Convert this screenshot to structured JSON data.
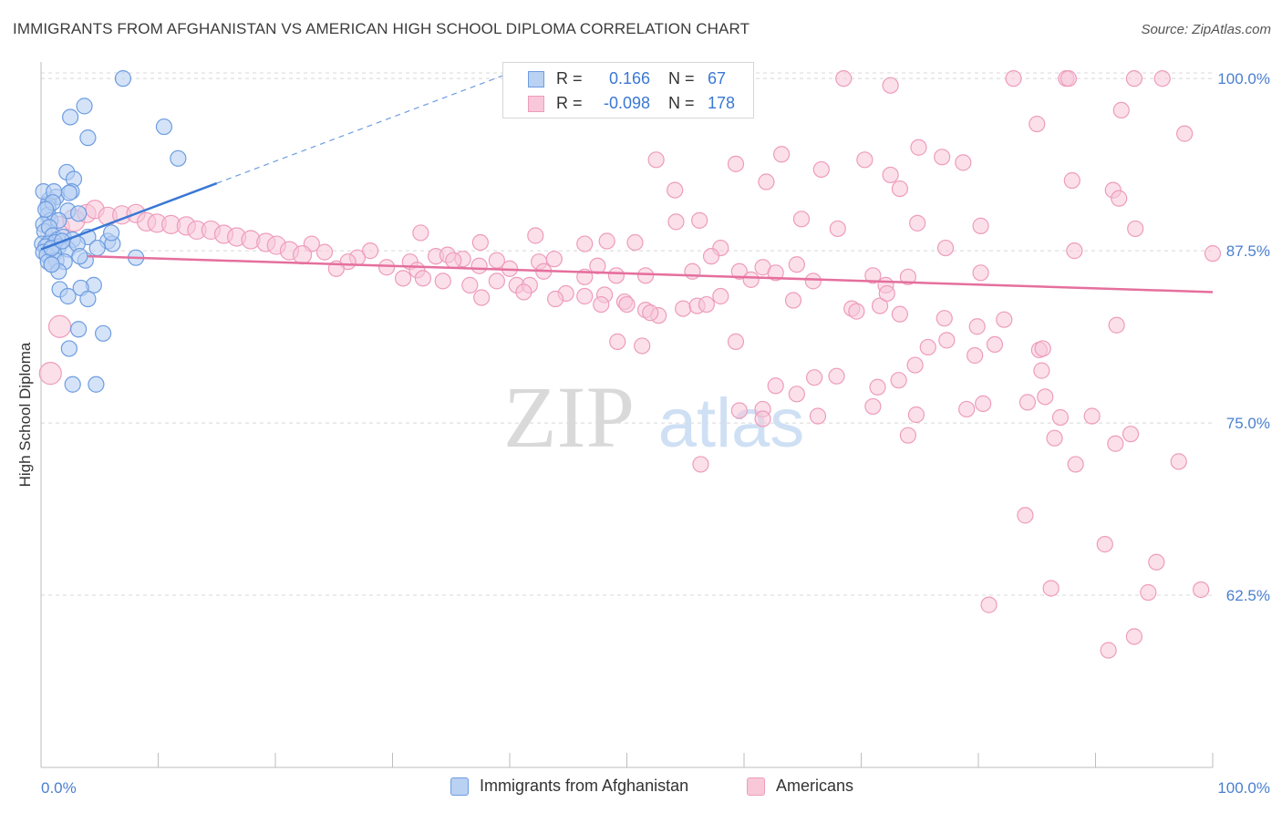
{
  "header": {
    "title": "IMMIGRANTS FROM AFGHANISTAN VS AMERICAN HIGH SCHOOL DIPLOMA CORRELATION CHART",
    "source": "Source: ZipAtlas.com"
  },
  "watermark": {
    "zip": "ZIP",
    "atlas": "atlas"
  },
  "colors": {
    "blue": "#3a78d4",
    "blue_fill": "#b9d1f3",
    "blue_stroke": "#6d9de0",
    "pink": "#e56f9d",
    "pink_fill": "#f8c7d8",
    "pink_stroke": "#ee9cbb",
    "axis_label": "#4a7fd0",
    "grid": "#d8d8d8"
  },
  "legend_stats": {
    "r_label": "R =",
    "n_label": "N =",
    "blue": {
      "r": "0.166",
      "n": "67"
    },
    "pink": {
      "r": "-0.098",
      "n": "178"
    }
  },
  "chart_data": {
    "type": "scatter",
    "title": "IMMIGRANTS FROM AFGHANISTAN VS AMERICAN HIGH SCHOOL DIPLOMA CORRELATION CHART",
    "xlabel": "",
    "ylabel": "High School Diploma",
    "xlim": [
      0,
      100
    ],
    "ylim": [
      50,
      101.2
    ],
    "x_tick_labels": [
      "0.0%",
      "100.0%"
    ],
    "y_ticks": [
      {
        "value": 100,
        "label": "100.0%"
      },
      {
        "value": 87.5,
        "label": "87.5%"
      },
      {
        "value": 75,
        "label": "75.0%"
      },
      {
        "value": 62.5,
        "label": "62.5%"
      }
    ],
    "legend": [
      "Immigrants from Afghanistan",
      "Americans"
    ],
    "series": [
      {
        "name": "Immigrants from Afghanistan",
        "color": "blue",
        "R": 0.166,
        "N": 67,
        "trend": {
          "x": [
            0,
            15
          ],
          "y": [
            87.6,
            92.4
          ]
        },
        "trend_dashed": {
          "x": [
            15,
            40
          ],
          "y": [
            92.4,
            100.4
          ]
        },
        "points": [
          [
            7,
            100
          ],
          [
            10.5,
            96.5
          ],
          [
            3.7,
            98
          ],
          [
            2.5,
            97.2
          ],
          [
            4,
            95.7
          ],
          [
            11.7,
            94.2
          ],
          [
            2.2,
            93.2
          ],
          [
            2.8,
            92.7
          ],
          [
            2.6,
            91.8
          ],
          [
            0.7,
            91.2
          ],
          [
            1.3,
            91.4
          ],
          [
            2.4,
            91.7
          ],
          [
            0.6,
            90.9
          ],
          [
            2.3,
            90.4
          ],
          [
            0.6,
            90.6
          ],
          [
            0.2,
            91.8
          ],
          [
            1.1,
            91.8
          ],
          [
            3.2,
            90.2
          ],
          [
            0.6,
            90.1
          ],
          [
            0.8,
            89.7
          ],
          [
            0.2,
            89.4
          ],
          [
            1.5,
            89.7
          ],
          [
            0.3,
            88.9
          ],
          [
            0.7,
            89.2
          ],
          [
            1.0,
            88.6
          ],
          [
            1.4,
            88.3
          ],
          [
            1.9,
            88.5
          ],
          [
            2.7,
            88.3
          ],
          [
            4,
            88.5
          ],
          [
            5.7,
            88.2
          ],
          [
            0.1,
            88.0
          ],
          [
            0.6,
            88.0
          ],
          [
            1.2,
            88.1
          ],
          [
            0.4,
            87.8
          ],
          [
            0.8,
            87.6
          ],
          [
            1.5,
            87.8
          ],
          [
            2.3,
            87.6
          ],
          [
            3.1,
            88.0
          ],
          [
            4.8,
            87.7
          ],
          [
            6.1,
            88.0
          ],
          [
            0.2,
            87.4
          ],
          [
            0.5,
            87.2
          ],
          [
            1.1,
            87.3
          ],
          [
            0.6,
            86.7
          ],
          [
            1.3,
            86.8
          ],
          [
            2.0,
            86.7
          ],
          [
            3.8,
            86.8
          ],
          [
            8.1,
            87.0
          ],
          [
            0.9,
            86.5
          ],
          [
            1.5,
            86.0
          ],
          [
            4.5,
            85.0
          ],
          [
            3.4,
            84.8
          ],
          [
            1.6,
            84.7
          ],
          [
            2.3,
            84.2
          ],
          [
            4.0,
            84.0
          ],
          [
            3.2,
            81.8
          ],
          [
            5.3,
            81.5
          ],
          [
            2.4,
            80.4
          ],
          [
            2.7,
            77.8
          ],
          [
            4.7,
            77.8
          ],
          [
            1.0,
            91.0
          ],
          [
            0.4,
            90.5
          ],
          [
            0.9,
            87.7
          ],
          [
            1.8,
            88.2
          ],
          [
            3.3,
            87.1
          ],
          [
            0.9,
            86.5
          ],
          [
            6.0,
            88.8
          ]
        ]
      },
      {
        "name": "Americans",
        "color": "pink",
        "R": -0.098,
        "N": 178,
        "trend": {
          "x": [
            4,
            100
          ],
          "y": [
            87.1,
            84.5
          ]
        },
        "points": [
          [
            68.5,
            100
          ],
          [
            72.5,
            99.5
          ],
          [
            83,
            100
          ],
          [
            87.5,
            100
          ],
          [
            87.7,
            100
          ],
          [
            93.3,
            100
          ],
          [
            95.7,
            100
          ],
          [
            92.2,
            97.7
          ],
          [
            85,
            96.7
          ],
          [
            97.6,
            96
          ],
          [
            63.2,
            94.5
          ],
          [
            74.9,
            95
          ],
          [
            76.9,
            94.3
          ],
          [
            70.3,
            94.1
          ],
          [
            52.5,
            94.1
          ],
          [
            59.3,
            93.8
          ],
          [
            66.6,
            93.4
          ],
          [
            72.5,
            93.0
          ],
          [
            78.7,
            93.9
          ],
          [
            61.9,
            92.5
          ],
          [
            73.3,
            92
          ],
          [
            88.0,
            92.6
          ],
          [
            54.1,
            91.9
          ],
          [
            91.5,
            91.9
          ],
          [
            92,
            91.3
          ],
          [
            64.9,
            89.8
          ],
          [
            74.8,
            89.5
          ],
          [
            80.2,
            89.3
          ],
          [
            56.2,
            89.7
          ],
          [
            93.4,
            89.1
          ],
          [
            68,
            89.1
          ],
          [
            54.2,
            89.6
          ],
          [
            42.2,
            88.6
          ],
          [
            48.3,
            88.2
          ],
          [
            50.7,
            88.1
          ],
          [
            32.4,
            88.8
          ],
          [
            37.5,
            88.1
          ],
          [
            46.4,
            88.0
          ],
          [
            58,
            87.7
          ],
          [
            64.5,
            86.5
          ],
          [
            88.2,
            87.5
          ],
          [
            100,
            87.3
          ],
          [
            77.2,
            87.7
          ],
          [
            57.2,
            87.1
          ],
          [
            47.5,
            86.4
          ],
          [
            61.6,
            86.3
          ],
          [
            43.8,
            86.9
          ],
          [
            42.5,
            86.7
          ],
          [
            31.5,
            86.7
          ],
          [
            33.7,
            87.1
          ],
          [
            38.9,
            86.8
          ],
          [
            36.0,
            86.9
          ],
          [
            34.7,
            87.2
          ],
          [
            28.1,
            87.5
          ],
          [
            27,
            87.0
          ],
          [
            24.2,
            87.4
          ],
          [
            23.1,
            88.0
          ],
          [
            26.2,
            86.7
          ],
          [
            25.2,
            86.2
          ],
          [
            29.5,
            86.3
          ],
          [
            32.1,
            86.1
          ],
          [
            35.2,
            86.8
          ],
          [
            37.4,
            86.4
          ],
          [
            40.0,
            86.2
          ],
          [
            42.9,
            86.0
          ],
          [
            46.4,
            85.6
          ],
          [
            49.1,
            85.7
          ],
          [
            51.6,
            85.7
          ],
          [
            55.6,
            86.0
          ],
          [
            59.6,
            86.0
          ],
          [
            30.9,
            85.5
          ],
          [
            32.6,
            85.5
          ],
          [
            34.3,
            85.3
          ],
          [
            36.6,
            85.0
          ],
          [
            38.9,
            85.3
          ],
          [
            40.6,
            85.0
          ],
          [
            41.7,
            85.0
          ],
          [
            44.8,
            84.4
          ],
          [
            46.4,
            84.2
          ],
          [
            48.1,
            84.3
          ],
          [
            49.8,
            83.8
          ],
          [
            51.6,
            83.2
          ],
          [
            52.7,
            82.8
          ],
          [
            54.8,
            83.3
          ],
          [
            56.0,
            83.5
          ],
          [
            58.0,
            84.2
          ],
          [
            60.6,
            85.4
          ],
          [
            62.7,
            85.9
          ],
          [
            65.9,
            85.3
          ],
          [
            71.0,
            85.7
          ],
          [
            80.2,
            85.9
          ],
          [
            72.1,
            85.0
          ],
          [
            37.6,
            84.1
          ],
          [
            41.2,
            84.5
          ],
          [
            43.9,
            84.0
          ],
          [
            47.8,
            83.6
          ],
          [
            50.0,
            83.6
          ],
          [
            52.0,
            83.0
          ],
          [
            56.8,
            83.6
          ],
          [
            64.2,
            83.9
          ],
          [
            71.6,
            83.5
          ],
          [
            73.3,
            82.9
          ],
          [
            77.1,
            82.6
          ],
          [
            79.9,
            82.0
          ],
          [
            82.2,
            82.5
          ],
          [
            72.2,
            84.4
          ],
          [
            74.0,
            85.6
          ],
          [
            91.8,
            82.1
          ],
          [
            69.2,
            83.3
          ],
          [
            69.6,
            83.1
          ],
          [
            49.2,
            80.9
          ],
          [
            51.3,
            80.6
          ],
          [
            59.3,
            80.9
          ],
          [
            75.7,
            80.5
          ],
          [
            77.3,
            81.0
          ],
          [
            79.7,
            79.9
          ],
          [
            81.4,
            80.7
          ],
          [
            85.2,
            80.3
          ],
          [
            85.5,
            80.4
          ],
          [
            74.6,
            79.2
          ],
          [
            62.7,
            77.7
          ],
          [
            64.5,
            77.1
          ],
          [
            66.0,
            78.3
          ],
          [
            71.4,
            77.6
          ],
          [
            73.2,
            78.1
          ],
          [
            67.9,
            78.4
          ],
          [
            80.4,
            76.4
          ],
          [
            84.2,
            76.5
          ],
          [
            87.0,
            75.4
          ],
          [
            59.6,
            75.9
          ],
          [
            61.6,
            76.0
          ],
          [
            79.0,
            76.0
          ],
          [
            85.4,
            78.8
          ],
          [
            91.7,
            73.5
          ],
          [
            97.1,
            72.2
          ],
          [
            88.3,
            72.0
          ],
          [
            84.0,
            68.3
          ],
          [
            95.2,
            64.9
          ],
          [
            90.8,
            66.2
          ],
          [
            94.5,
            62.7
          ],
          [
            86.2,
            63.0
          ],
          [
            91.1,
            58.5
          ],
          [
            80.9,
            61.8
          ],
          [
            93.3,
            59.5
          ],
          [
            99.0,
            62.9
          ],
          [
            61.6,
            75.3
          ],
          [
            71.0,
            76.2
          ],
          [
            74.7,
            75.6
          ],
          [
            66.3,
            75.5
          ],
          [
            86.5,
            73.9
          ],
          [
            89.7,
            75.5
          ],
          [
            93.0,
            74.2
          ],
          [
            56.3,
            72.0
          ],
          [
            74.0,
            74.1
          ],
          [
            85.7,
            76.9
          ],
          [
            1.5,
            89.2
          ],
          [
            2.8,
            89.7
          ],
          [
            3.9,
            90.2
          ],
          [
            4.6,
            90.5
          ],
          [
            5.7,
            90.0
          ],
          [
            6.9,
            90.1
          ],
          [
            8.1,
            90.2
          ],
          [
            9.0,
            89.6
          ],
          [
            9.9,
            89.5
          ],
          [
            11.1,
            89.4
          ],
          [
            12.4,
            89.3
          ],
          [
            13.3,
            89.0
          ],
          [
            14.5,
            89.0
          ],
          [
            15.6,
            88.7
          ],
          [
            16.7,
            88.5
          ],
          [
            17.9,
            88.3
          ],
          [
            19.2,
            88.1
          ],
          [
            20.1,
            87.9
          ],
          [
            21.2,
            87.5
          ],
          [
            22.3,
            87.2
          ],
          [
            1.6,
            82.0
          ],
          [
            0.8,
            78.6
          ]
        ]
      }
    ]
  }
}
